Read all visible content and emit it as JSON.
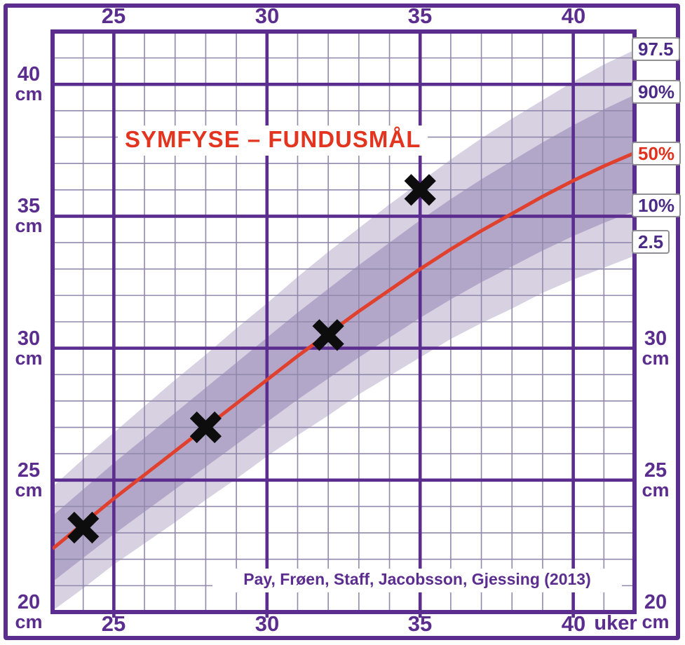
{
  "title": "SYMFYSE – FUNDUSMÅL",
  "citation": "Pay, Frøen, Staff, Jacobsson, Gjessing (2013)",
  "axis": {
    "top_labels": [
      "25",
      "30",
      "35",
      "40"
    ],
    "bottom_labels": [
      "25",
      "30",
      "35",
      "40"
    ],
    "bottom_unit": "uker",
    "left_labels": [
      {
        "value": "40",
        "unit": "cm"
      },
      {
        "value": "35",
        "unit": "cm"
      },
      {
        "value": "30",
        "unit": "cm"
      },
      {
        "value": "25",
        "unit": "cm"
      },
      {
        "value": "20",
        "unit": "cm"
      }
    ],
    "right_labels": [
      {
        "value": "30",
        "unit": "cm"
      },
      {
        "value": "25",
        "unit": "cm"
      },
      {
        "value": "20",
        "unit": "cm"
      }
    ]
  },
  "percentile_labels": [
    {
      "text": "97.5"
    },
    {
      "text": "90%"
    },
    {
      "text": "50%"
    },
    {
      "text": "10%"
    },
    {
      "text": "2.5"
    }
  ],
  "colors": {
    "major_grid": "#5b2d8f",
    "minor_grid": "#9189ab",
    "band_outer": "#d7d1e2",
    "band_inner": "#b3a7c9",
    "median_line": "#e0402e",
    "marker": "#0d0d0d",
    "label_purple": "#5b2d8f",
    "accent_red": "#e0301e",
    "box_border": "#8f8f94"
  },
  "chart_data": {
    "type": "line",
    "title": "SYMFYSE – FUNDUSMÅL",
    "xlabel": "uker",
    "ylabel": "cm",
    "xlim": [
      23,
      42
    ],
    "ylim": [
      20,
      42
    ],
    "x_major_ticks": [
      25,
      30,
      35,
      40
    ],
    "y_major_ticks": [
      25,
      30,
      35,
      40
    ],
    "grid": "minor 1 uke x 1 cm, major every 5",
    "weeks": [
      23,
      24,
      25,
      26,
      27,
      28,
      29,
      30,
      31,
      32,
      33,
      34,
      35,
      36,
      37,
      38,
      39,
      40,
      41,
      42
    ],
    "series": [
      {
        "name": "97.5",
        "values": [
          24.75,
          25.8,
          26.8,
          27.8,
          28.8,
          29.75,
          30.75,
          31.7,
          32.7,
          33.65,
          34.55,
          35.45,
          36.3,
          37.15,
          37.95,
          38.7,
          39.4,
          40.1,
          40.75,
          41.3
        ]
      },
      {
        "name": "90%",
        "values": [
          23.65,
          24.65,
          25.65,
          26.6,
          27.55,
          28.5,
          29.45,
          30.4,
          31.35,
          32.25,
          33.15,
          34.0,
          34.85,
          35.65,
          36.4,
          37.1,
          37.8,
          38.45,
          39.05,
          39.6
        ]
      },
      {
        "name": "50%",
        "values": [
          22.4,
          23.35,
          24.3,
          25.2,
          26.1,
          27.0,
          27.9,
          28.8,
          29.7,
          30.55,
          31.4,
          32.2,
          33.0,
          33.75,
          34.45,
          35.1,
          35.75,
          36.35,
          36.9,
          37.4
        ]
      },
      {
        "name": "10%",
        "values": [
          21.15,
          22.05,
          22.95,
          23.8,
          24.65,
          25.5,
          26.35,
          27.2,
          28.05,
          28.85,
          29.65,
          30.4,
          31.15,
          31.85,
          32.5,
          33.1,
          33.7,
          34.25,
          34.75,
          35.2
        ]
      },
      {
        "name": "2.5",
        "values": [
          20.05,
          20.9,
          21.8,
          22.6,
          23.4,
          24.25,
          25.05,
          25.9,
          26.7,
          27.45,
          28.25,
          28.95,
          29.65,
          30.35,
          30.95,
          31.5,
          32.1,
          32.6,
          33.05,
          33.5
        ]
      }
    ],
    "bands": [
      {
        "upper": "97.5",
        "lower": "2.5",
        "color_key": "band_outer"
      },
      {
        "upper": "90%",
        "lower": "10%",
        "color_key": "band_inner"
      }
    ],
    "median_series": "50%",
    "points": [
      {
        "week": 24,
        "cm": 23.2
      },
      {
        "week": 28,
        "cm": 27.0
      },
      {
        "week": 32,
        "cm": 30.5
      },
      {
        "week": 35,
        "cm": 36.0
      }
    ],
    "legend_position": "right-edge boxes"
  }
}
